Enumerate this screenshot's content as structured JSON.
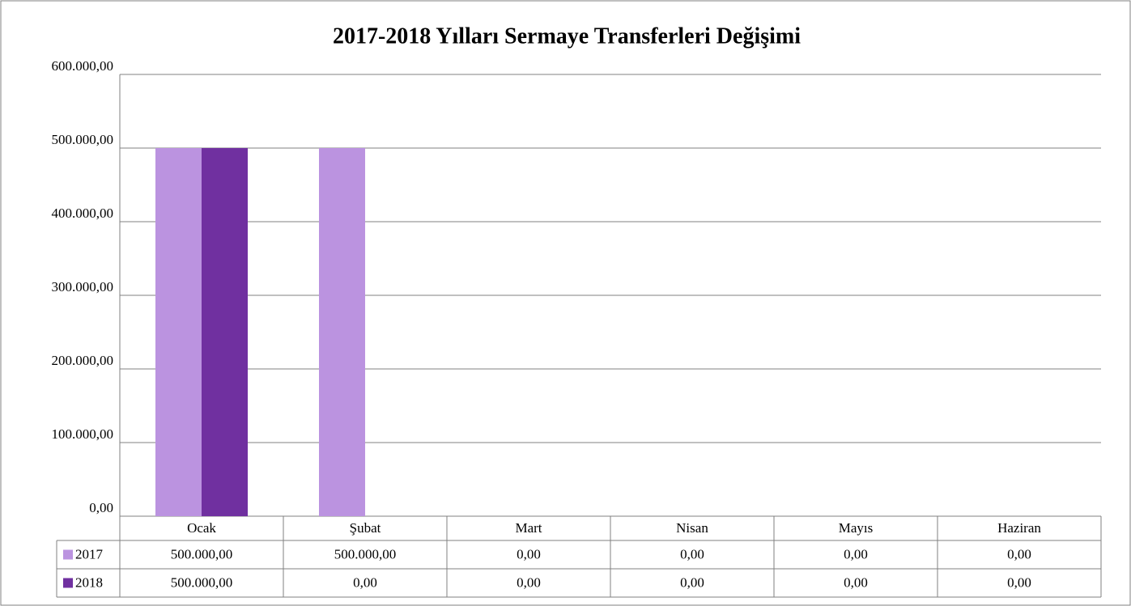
{
  "chart_data": {
    "type": "bar",
    "title": "2017-2018 Yılları Sermaye Transferleri Değişimi",
    "categories": [
      "Ocak",
      "Şubat",
      "Mart",
      "Nisan",
      "Mayıs",
      "Haziran"
    ],
    "series": [
      {
        "name": "2017",
        "color": "#bb93e0",
        "values": [
          500000,
          500000,
          0,
          0,
          0,
          0
        ],
        "value_labels": [
          "500.000,00",
          "500.000,00",
          "0,00",
          "0,00",
          "0,00",
          "0,00"
        ]
      },
      {
        "name": "2018",
        "color": "#7030a0",
        "values": [
          500000,
          0,
          0,
          0,
          0,
          0
        ],
        "value_labels": [
          "500.000,00",
          "0,00",
          "0,00",
          "0,00",
          "0,00",
          "0,00"
        ]
      }
    ],
    "ylim": [
      0,
      600000
    ],
    "yticks": [
      {
        "value": 0,
        "label": "0,00"
      },
      {
        "value": 100000,
        "label": "100.000,00"
      },
      {
        "value": 200000,
        "label": "200.000,00"
      },
      {
        "value": 300000,
        "label": "300.000,00"
      },
      {
        "value": 400000,
        "label": "400.000,00"
      },
      {
        "value": 500000,
        "label": "500.000,00"
      },
      {
        "value": 600000,
        "label": "600.000,00"
      }
    ],
    "grid": true
  }
}
